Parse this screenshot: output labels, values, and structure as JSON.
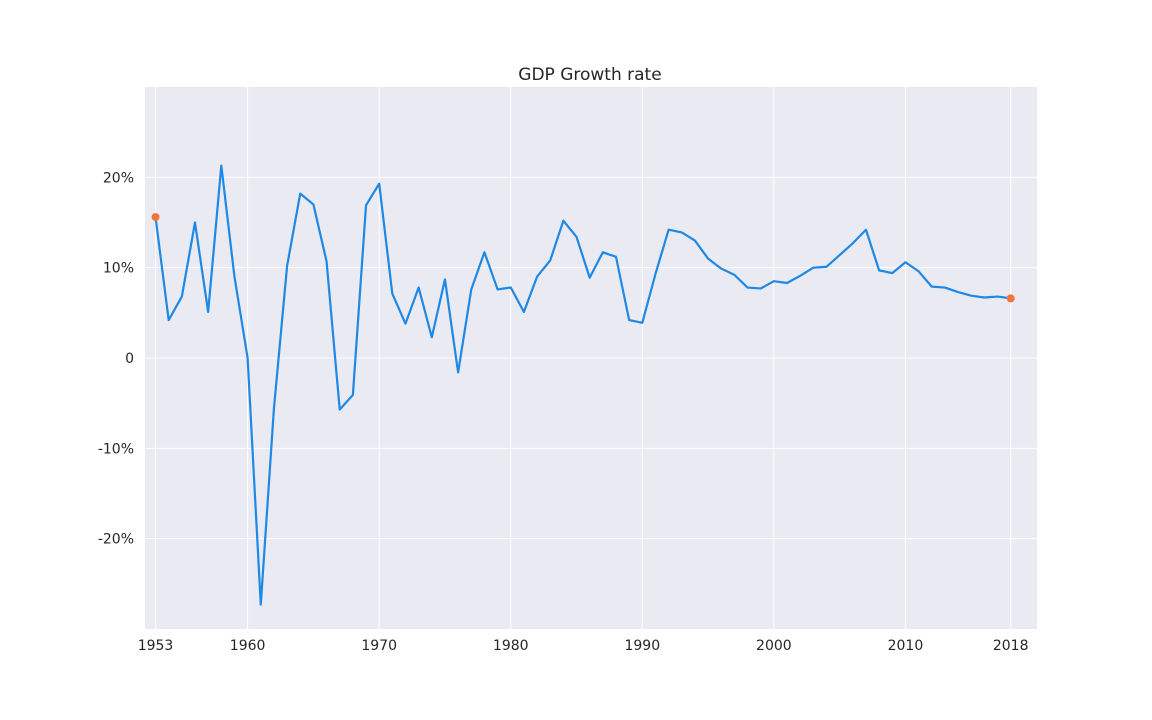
{
  "chart_data": {
    "type": "line",
    "title": "GDP Growth rate",
    "xlabel": "",
    "ylabel": "",
    "xlim": [
      1952.2,
      2020
    ],
    "ylim": [
      -30,
      30
    ],
    "grid": true,
    "x_ticks": [
      1953,
      1960,
      1970,
      1980,
      1990,
      2000,
      2010,
      2018
    ],
    "y_ticks": [
      {
        "value": -20,
        "label": "-20%"
      },
      {
        "value": -10,
        "label": "-10%"
      },
      {
        "value": 0,
        "label": "0"
      },
      {
        "value": 10,
        "label": "10%"
      },
      {
        "value": 20,
        "label": "20%"
      }
    ],
    "colors": {
      "line": "#1e88e5",
      "marker": "#f4733a"
    },
    "x": [
      1953,
      1954,
      1955,
      1956,
      1957,
      1958,
      1959,
      1960,
      1961,
      1962,
      1963,
      1964,
      1965,
      1966,
      1967,
      1968,
      1969,
      1970,
      1971,
      1972,
      1973,
      1974,
      1975,
      1976,
      1977,
      1978,
      1979,
      1980,
      1981,
      1982,
      1983,
      1984,
      1985,
      1986,
      1987,
      1988,
      1989,
      1990,
      1991,
      1992,
      1993,
      1994,
      1995,
      1996,
      1997,
      1998,
      1999,
      2000,
      2001,
      2002,
      2003,
      2004,
      2005,
      2006,
      2007,
      2008,
      2009,
      2010,
      2011,
      2012,
      2013,
      2014,
      2015,
      2016,
      2017,
      2018
    ],
    "values": [
      15.6,
      4.2,
      6.8,
      15.0,
      5.1,
      21.3,
      9.0,
      0.0,
      -27.3,
      -5.6,
      10.2,
      18.2,
      17.0,
      10.7,
      -5.7,
      -4.1,
      16.9,
      19.3,
      7.1,
      3.8,
      7.8,
      2.3,
      8.7,
      -1.6,
      7.6,
      11.7,
      7.6,
      7.8,
      5.1,
      9.0,
      10.8,
      15.2,
      13.4,
      8.9,
      11.7,
      11.2,
      4.2,
      3.9,
      9.3,
      14.2,
      13.9,
      13.0,
      11.0,
      9.9,
      9.2,
      7.8,
      7.7,
      8.5,
      8.3,
      9.1,
      10.0,
      10.1,
      11.4,
      12.7,
      14.2,
      9.7,
      9.4,
      10.6,
      9.6,
      7.9,
      7.8,
      7.3,
      6.9,
      6.7,
      6.8,
      6.6
    ],
    "highlight_points": [
      {
        "x": 1953,
        "y": 15.6
      },
      {
        "x": 2018,
        "y": 6.6
      }
    ]
  }
}
